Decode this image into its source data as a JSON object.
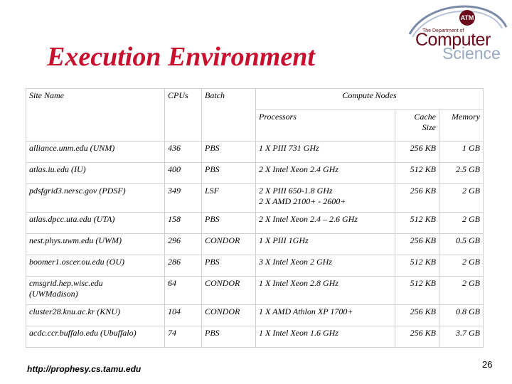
{
  "title": "Execution Environment",
  "logo": {
    "small_text": "The Department of",
    "line1": "Computer",
    "line2": "Science",
    "seal": "ATM"
  },
  "table": {
    "headers": {
      "site": "Site Name",
      "cpus": "CPUs",
      "batch": "Batch",
      "compute": "Compute Nodes",
      "processors": "Processors",
      "cache": "Cache Size",
      "memory": "Memory"
    },
    "rows": [
      {
        "site": "alliance.unm.edu (UNM)",
        "cpus": "436",
        "batch": "PBS",
        "proc": "1 X PIII 731 GHz",
        "cache": "256 KB",
        "mem": "1 GB"
      },
      {
        "site": "atlas.iu.edu (IU)",
        "cpus": "400",
        "batch": "PBS",
        "proc": "2 X Intel Xeon 2.4 GHz",
        "cache": "512 KB",
        "mem": "2.5 GB"
      },
      {
        "site": "pdsfgrid3.nersc.gov (PDSF)",
        "cpus": "349",
        "batch": "LSF",
        "proc": "2 X PIII 650-1.8 GHz\n2 X AMD 2100+ - 2600+",
        "cache": "256 KB",
        "mem": "2 GB"
      },
      {
        "site": "atlas.dpcc.uta.edu (UTA)",
        "cpus": "158",
        "batch": "PBS",
        "proc": "2 X Intel Xeon 2.4 – 2.6 GHz",
        "cache": "512 KB",
        "mem": "2 GB"
      },
      {
        "site": "nest.phys.uwm.edu (UWM)",
        "cpus": "296",
        "batch": "CONDOR",
        "proc": "1 X PIII 1GHz",
        "cache": "256 KB",
        "mem": "0.5 GB"
      },
      {
        "site": "boomer1.oscer.ou.edu (OU)",
        "cpus": "286",
        "batch": "PBS",
        "proc": "3 X Intel Xeon 2 GHz",
        "cache": "512 KB",
        "mem": "2 GB"
      },
      {
        "site": "cmsgrid.hep.wisc.edu\n(UWMadison)",
        "cpus": "64",
        "batch": "CONDOR",
        "proc": "1 X Intel Xeon 2.8 GHz",
        "cache": "512 KB",
        "mem": "2 GB"
      },
      {
        "site": "cluster28.knu.ac.kr (KNU)",
        "cpus": "104",
        "batch": "CONDOR",
        "proc": "1 X AMD Athlon XP 1700+",
        "cache": "256 KB",
        "mem": "0.8 GB"
      },
      {
        "site": "acdc.ccr.buffalo.edu (Ubuffalo)",
        "cpus": "74",
        "batch": "PBS",
        "proc": "1 X Intel Xeon 1.6 GHz",
        "cache": "256 KB",
        "mem": "3.7 GB"
      }
    ]
  },
  "footer": {
    "url": "http://prophesy.cs.tamu.edu",
    "page_number": "26"
  }
}
